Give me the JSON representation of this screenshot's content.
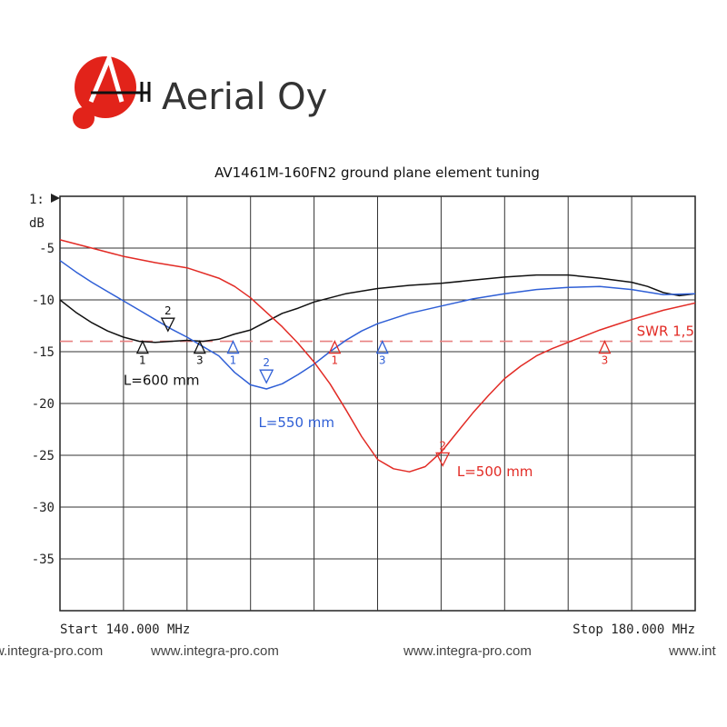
{
  "brand": {
    "name": "Aerial Oy",
    "logo_color": "#e2231a"
  },
  "watermarks": [
    "w.integra-pro.com",
    "www.integra-pro.com",
    "www.integra-pro.com",
    "www.int"
  ],
  "chart_data": {
    "type": "line",
    "title": "AV1461M-160FN2 ground plane element tuning",
    "scale_label": "1:",
    "ylabel": "dB",
    "xlim": [
      140,
      180
    ],
    "ylim": [
      -40,
      0
    ],
    "x_unit": "MHz",
    "start_label": "Start 140.000 MHz",
    "stop_label": "Stop 180.000 MHz",
    "yticks": [
      {
        "value": -5,
        "label": "-5"
      },
      {
        "value": -10,
        "label": "-10"
      },
      {
        "value": -15,
        "label": "-15"
      },
      {
        "value": -20,
        "label": "-20"
      },
      {
        "value": -25,
        "label": "-25"
      },
      {
        "value": -30,
        "label": "-30"
      },
      {
        "value": -35,
        "label": "-35"
      }
    ],
    "grid": true,
    "reference_line": {
      "label": "SWR 1,5",
      "value": -14,
      "color": "#e88080"
    },
    "series": [
      {
        "name": "L=600 mm",
        "color": "#111111",
        "x": [
          140,
          141,
          142,
          143,
          144,
          145,
          146,
          147,
          148,
          149,
          150,
          151,
          152,
          153,
          154,
          155,
          156,
          158,
          160,
          162,
          164,
          166,
          168,
          170,
          172,
          174,
          176,
          177,
          178,
          179,
          180
        ],
        "y": [
          -10,
          -11.2,
          -12.2,
          -13.0,
          -13.6,
          -14.0,
          -14.1,
          -14.0,
          -13.9,
          -14.0,
          -13.8,
          -13.3,
          -12.9,
          -12.1,
          -11.3,
          -10.8,
          -10.2,
          -9.4,
          -8.9,
          -8.6,
          -8.4,
          -8.1,
          -7.8,
          -7.6,
          -7.6,
          -7.9,
          -8.3,
          -8.7,
          -9.3,
          -9.6,
          -9.4
        ]
      },
      {
        "name": "L=550 mm",
        "color": "#2f5fd6",
        "x": [
          140,
          141,
          142,
          143,
          144,
          145,
          146,
          147,
          148,
          149,
          150,
          151,
          152,
          153,
          154,
          155,
          156,
          157,
          158,
          159,
          160,
          162,
          164,
          166,
          168,
          170,
          172,
          174,
          176,
          178,
          180
        ],
        "y": [
          -6.2,
          -7.3,
          -8.3,
          -9.2,
          -10.1,
          -11.0,
          -11.9,
          -12.8,
          -13.6,
          -14.5,
          -15.4,
          -17.0,
          -18.2,
          -18.6,
          -18.1,
          -17.2,
          -16.2,
          -15.0,
          -13.9,
          -13.0,
          -12.3,
          -11.3,
          -10.6,
          -9.9,
          -9.4,
          -9.0,
          -8.8,
          -8.7,
          -9.0,
          -9.5,
          -9.4
        ]
      },
      {
        "name": "L=500 mm",
        "color": "#e22b25",
        "x": [
          140,
          142,
          144,
          146,
          148,
          150,
          151,
          152,
          153,
          154,
          155,
          156,
          157,
          158,
          159,
          160,
          161,
          162,
          163,
          164,
          165,
          166,
          167,
          168,
          169,
          170,
          171,
          172,
          173,
          174,
          175,
          176,
          178,
          180
        ],
        "y": [
          -4.2,
          -5.0,
          -5.8,
          -6.4,
          -6.9,
          -7.9,
          -8.7,
          -9.8,
          -11.2,
          -12.6,
          -14.2,
          -16.0,
          -18.1,
          -20.6,
          -23.2,
          -25.4,
          -26.3,
          -26.6,
          -26.1,
          -24.7,
          -22.8,
          -20.9,
          -19.2,
          -17.6,
          -16.4,
          -15.4,
          -14.7,
          -14.1,
          -13.5,
          -12.9,
          -12.4,
          -11.9,
          -11.0,
          -10.3
        ]
      }
    ],
    "markers": [
      {
        "series": 0,
        "x": 145.2,
        "y": -14.0,
        "label": "1",
        "dir": "up"
      },
      {
        "series": 0,
        "x": 146.8,
        "y": -13.0,
        "label": "2",
        "dir": "down"
      },
      {
        "series": 0,
        "x": 148.8,
        "y": -14.0,
        "label": "3",
        "dir": "up"
      },
      {
        "series": 1,
        "x": 150.9,
        "y": -14.0,
        "label": "1",
        "dir": "up"
      },
      {
        "series": 1,
        "x": 153.0,
        "y": -18.0,
        "label": "2",
        "dir": "down"
      },
      {
        "series": 1,
        "x": 160.3,
        "y": -14.0,
        "label": "3",
        "dir": "up"
      },
      {
        "series": 2,
        "x": 157.3,
        "y": -14.0,
        "label": "1",
        "dir": "up"
      },
      {
        "series": 2,
        "x": 164.1,
        "y": -26.0,
        "label": "2",
        "dir": "down"
      },
      {
        "series": 2,
        "x": 174.3,
        "y": -14.0,
        "label": "3",
        "dir": "up"
      }
    ],
    "annotations": [
      {
        "series": 0,
        "text": "L=600 mm",
        "x": 144.0,
        "y": -18.2
      },
      {
        "series": 1,
        "text": "L=550 mm",
        "x": 152.5,
        "y": -22.3
      },
      {
        "series": 2,
        "text": "L=500 mm",
        "x": 165.0,
        "y": -27.0
      }
    ]
  }
}
